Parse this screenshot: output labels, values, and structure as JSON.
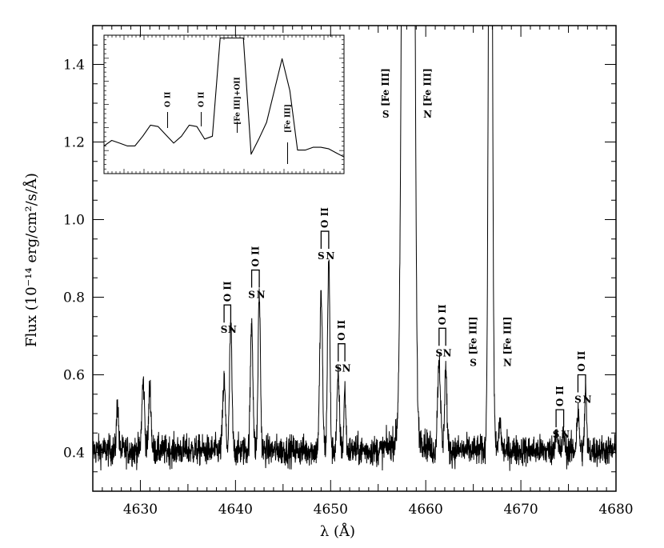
{
  "chart_data": {
    "type": "line",
    "title": "",
    "xlabel": "λ (Å)",
    "ylabel": "Flux (10⁻¹⁴ erg/cm²/s/Å)",
    "xlim": [
      4625,
      4680
    ],
    "ylim": [
      0.3,
      1.5
    ],
    "x_ticks": [
      "4630",
      "4640",
      "4650",
      "4660",
      "4670",
      "4680"
    ],
    "y_ticks": [
      "0.4",
      "0.6",
      "0.8",
      "1.0",
      "1.2",
      "1.4"
    ],
    "continuum": 0.405,
    "lines": [
      {
        "x": 4627.6,
        "y": 0.53,
        "w": 0.1
      },
      {
        "x": 4630.3,
        "y": 0.58,
        "w": 0.14
      },
      {
        "x": 4631.0,
        "y": 0.57,
        "w": 0.12
      },
      {
        "x": 4638.8,
        "y": 0.58,
        "w": 0.14
      },
      {
        "x": 4639.5,
        "y": 0.73,
        "w": 0.12
      },
      {
        "x": 4641.7,
        "y": 0.74,
        "w": 0.13
      },
      {
        "x": 4642.5,
        "y": 0.81,
        "w": 0.12
      },
      {
        "x": 4649.0,
        "y": 0.81,
        "w": 0.14
      },
      {
        "x": 4649.8,
        "y": 0.9,
        "w": 0.12
      },
      {
        "x": 4650.8,
        "y": 0.59,
        "w": 0.13
      },
      {
        "x": 4651.5,
        "y": 0.56,
        "w": 0.1
      },
      {
        "x": 4657.8,
        "y": 3.0,
        "w": 0.28
      },
      {
        "x": 4658.6,
        "y": 3.0,
        "w": 0.22
      },
      {
        "x": 4661.4,
        "y": 0.64,
        "w": 0.15
      },
      {
        "x": 4662.1,
        "y": 0.62,
        "w": 0.12
      },
      {
        "x": 4666.8,
        "y": 3.0,
        "w": 0.17
      },
      {
        "x": 4667.8,
        "y": 0.48,
        "w": 0.12
      },
      {
        "x": 4673.7,
        "y": 0.46,
        "w": 0.12
      },
      {
        "x": 4674.5,
        "y": 0.45,
        "w": 0.1
      },
      {
        "x": 4676.0,
        "y": 0.5,
        "w": 0.13
      },
      {
        "x": 4676.8,
        "y": 0.56,
        "w": 0.1
      }
    ],
    "annotations": [
      {
        "id": "oii-4639",
        "label": "O II",
        "sn": true,
        "top_y": 0.78,
        "xs": 4638.8,
        "xn": 4639.5
      },
      {
        "id": "oii-4642",
        "label": "O II",
        "sn": true,
        "top_y": 0.87,
        "xs": 4641.7,
        "xn": 4642.5
      },
      {
        "id": "oii-4649",
        "label": "O II",
        "sn": true,
        "top_y": 0.97,
        "xs": 4649.0,
        "xn": 4649.8
      },
      {
        "id": "oii-4651",
        "label": "O II",
        "sn": true,
        "top_y": 0.68,
        "xs": 4650.8,
        "xn": 4651.5
      },
      {
        "id": "oii-4661",
        "label": "O II",
        "sn": true,
        "top_y": 0.72,
        "xs": 4661.4,
        "xn": 4662.1
      },
      {
        "id": "oii-4674",
        "label": "O II",
        "sn": true,
        "top_y": 0.51,
        "xs": 4673.7,
        "xn": 4674.5
      },
      {
        "id": "oii-4676",
        "label": "O II",
        "sn": true,
        "top_y": 0.6,
        "xs": 4676.0,
        "xn": 4676.8
      }
    ],
    "fe_labels": [
      {
        "id": "feiii-s-4658",
        "text": "[Fe III]",
        "prefix": "S",
        "x": 4655.8,
        "y": 1.3
      },
      {
        "id": "feiii-n-4658",
        "text": "[Fe III]",
        "prefix": "N",
        "x": 4660.2,
        "y": 1.3
      },
      {
        "id": "feiii-s-4667",
        "text": "[Fe III]",
        "prefix": "S",
        "x": 4665.0,
        "y": 0.66
      },
      {
        "id": "feiii-n-4667",
        "text": "[Fe III]",
        "prefix": "N",
        "x": 4668.6,
        "y": 0.66
      }
    ],
    "inset": {
      "points_y": [
        0.2,
        0.24,
        0.22,
        0.2,
        0.2,
        0.27,
        0.35,
        0.34,
        0.28,
        0.22,
        0.27,
        0.35,
        0.34,
        0.25,
        0.27,
        0.98,
        0.98,
        0.98,
        0.98,
        0.14,
        0.25,
        0.37,
        0.6,
        0.83,
        0.6,
        0.17,
        0.17,
        0.19,
        0.19,
        0.18,
        0.15,
        0.12
      ],
      "labels": [
        {
          "id": "inset-oii-1",
          "text": "O II",
          "x_frac": 0.265
        },
        {
          "id": "inset-oii-2",
          "text": "O II",
          "x_frac": 0.405
        },
        {
          "id": "inset-feiii-oii",
          "text": "[Fe III]+OII",
          "x_frac": 0.555
        },
        {
          "id": "inset-feiii",
          "text": "[Fe III]",
          "x_frac": 0.765
        }
      ]
    }
  }
}
